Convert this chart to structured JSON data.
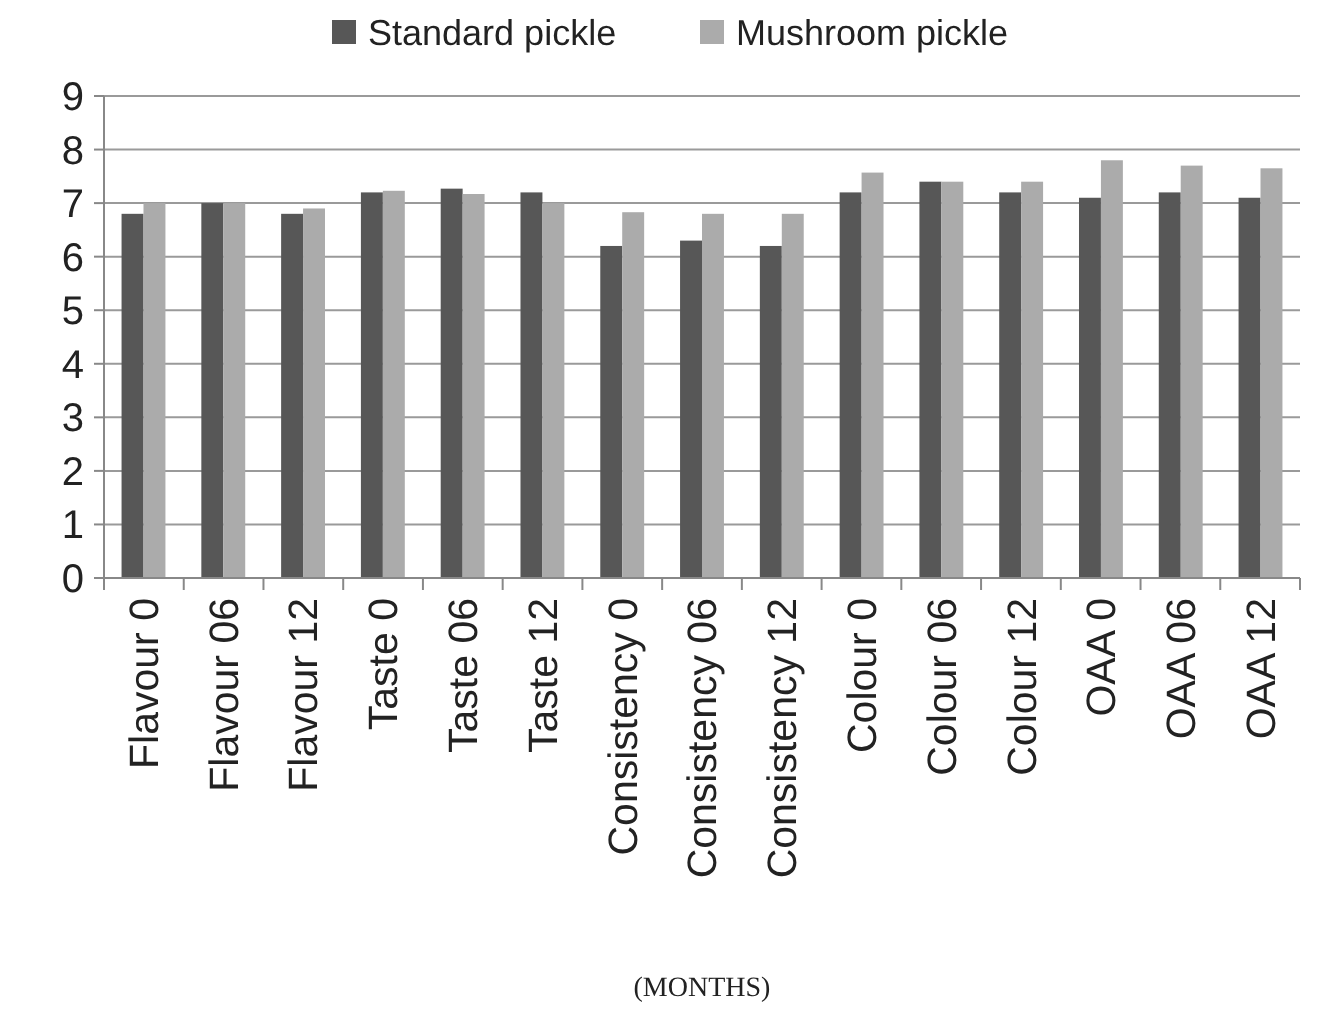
{
  "chart_data": {
    "type": "bar",
    "xlabel": "(MONTHS)",
    "categories": [
      "Flavour 0",
      "Flavour 06",
      "Flavour 12",
      "Taste 0",
      "Taste 06",
      "Taste 12",
      "Consistency 0",
      "Consistency 06",
      "Consistency 12",
      "Colour 0",
      "Colour 06",
      "Colour 12",
      "OAA 0",
      "OAA 06",
      "OAA 12"
    ],
    "series": [
      {
        "name": "Standard pickle",
        "color": "#575757",
        "values": [
          6.8,
          7.0,
          6.8,
          7.2,
          7.27,
          7.2,
          6.2,
          6.3,
          6.2,
          7.2,
          7.4,
          7.2,
          7.1,
          7.2,
          7.1
        ]
      },
      {
        "name": "Mushroom pickle",
        "color": "#ababab",
        "values": [
          7.0,
          7.0,
          6.9,
          7.23,
          7.17,
          7.0,
          6.83,
          6.8,
          6.8,
          7.57,
          7.4,
          7.4,
          7.8,
          7.7,
          7.65
        ]
      }
    ],
    "ylim": [
      0,
      9
    ],
    "yticks": [
      0,
      1,
      2,
      3,
      4,
      5,
      6,
      7,
      8,
      9
    ],
    "grid": "y",
    "legend": "top"
  }
}
